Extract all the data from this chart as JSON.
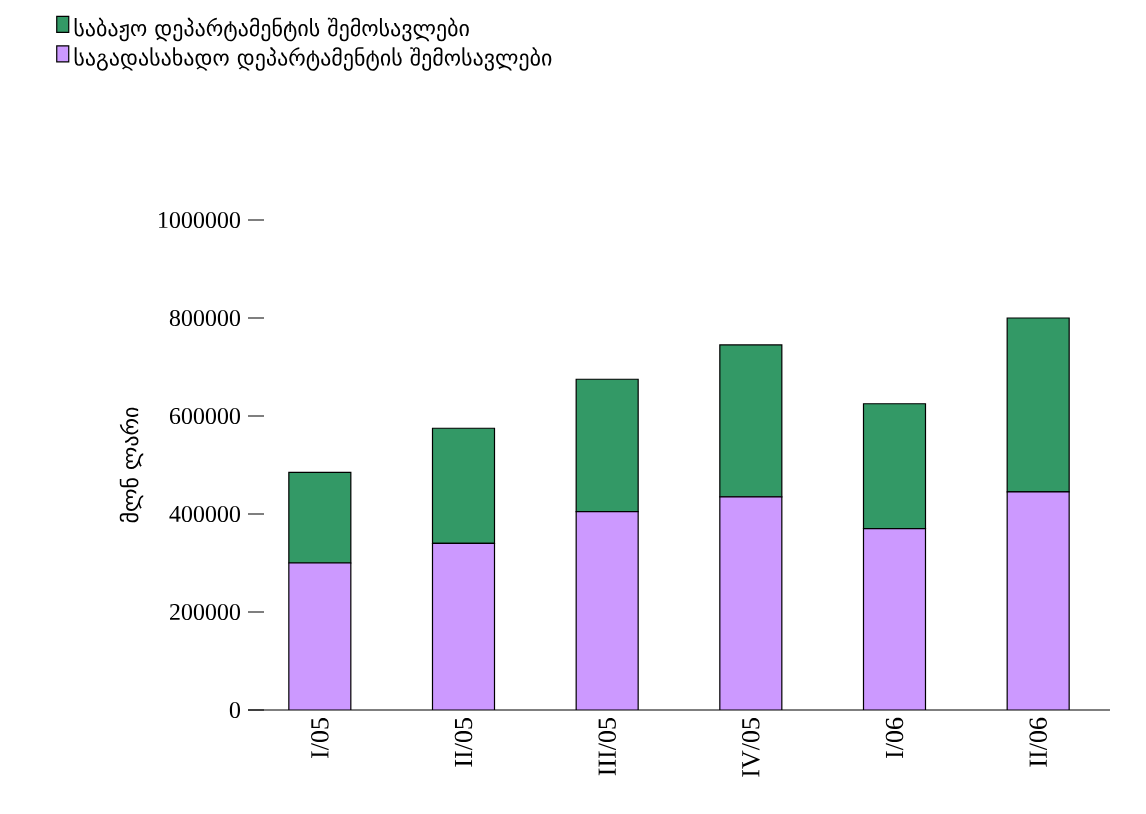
{
  "chart_data": {
    "type": "bar",
    "stacked": true,
    "ylabel": "მლნ ლარი",
    "categories": [
      "I/05",
      "II/05",
      "III/05",
      "IV/05",
      "I/06",
      "II/06"
    ],
    "series": [
      {
        "name": "საგადასახადო დეპარტამენტის შემოსავლები",
        "color": "#cc99ff",
        "values": [
          300000,
          340000,
          405000,
          435000,
          370000,
          445000
        ]
      },
      {
        "name": "საბაჟო დეპარტამენტის შემოსავლები",
        "color": "#339966",
        "values": [
          185000,
          235000,
          270000,
          310000,
          255000,
          355000
        ]
      }
    ],
    "ylim": [
      0,
      1000000
    ],
    "yticks": [
      0,
      200000,
      400000,
      600000,
      800000,
      1000000
    ],
    "legend": "top left",
    "grid": false
  }
}
